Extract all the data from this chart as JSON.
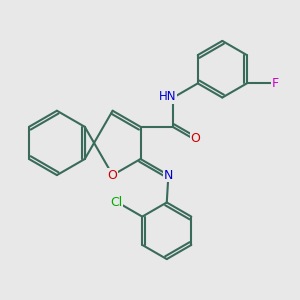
{
  "background_color": "#e8e8e8",
  "bond_color": "#3a6b5a",
  "bond_width": 1.5,
  "atom_colors": {
    "O": "#cc0000",
    "N": "#0000cc",
    "H": "#777777",
    "F": "#cc00cc",
    "Cl": "#00aa00"
  },
  "figsize": [
    3.0,
    3.0
  ],
  "dpi": 100
}
